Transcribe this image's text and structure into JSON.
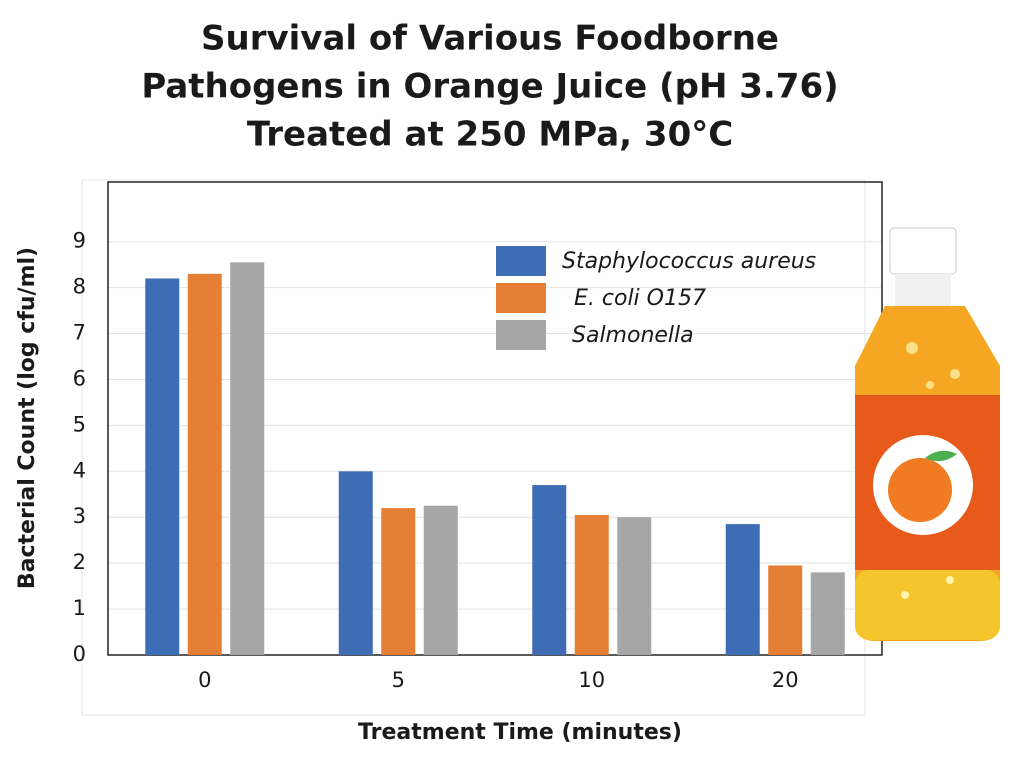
{
  "chart_data": {
    "type": "bar",
    "title": [
      "Survival of Various Foodborne",
      "Pathogens in Orange Juice (pH 3.76)",
      "Treated at 250 MPa, 30°C"
    ],
    "x_label": "Treatment Time (minutes)",
    "y_label": "Bacterial Count (log cfu/ml)",
    "categories": [
      "0",
      "5",
      "10",
      "20"
    ],
    "series": [
      {
        "name": "Staphylococcus aureus",
        "color": "#3f6db5",
        "values": [
          8.2,
          4.0,
          3.7,
          2.85
        ]
      },
      {
        "name": "E. coli O157",
        "color": "#e57f35",
        "values": [
          8.3,
          3.2,
          3.05,
          1.95
        ]
      },
      {
        "name": "Salmonella",
        "color": "#a6a6a6",
        "values": [
          8.55,
          3.25,
          3.0,
          1.8
        ]
      }
    ],
    "ylim": [
      0,
      10.3
    ],
    "yticks": [
      0,
      1,
      2,
      3,
      4,
      5,
      6,
      7,
      8,
      9
    ],
    "grid": true,
    "legend": "upper right"
  }
}
